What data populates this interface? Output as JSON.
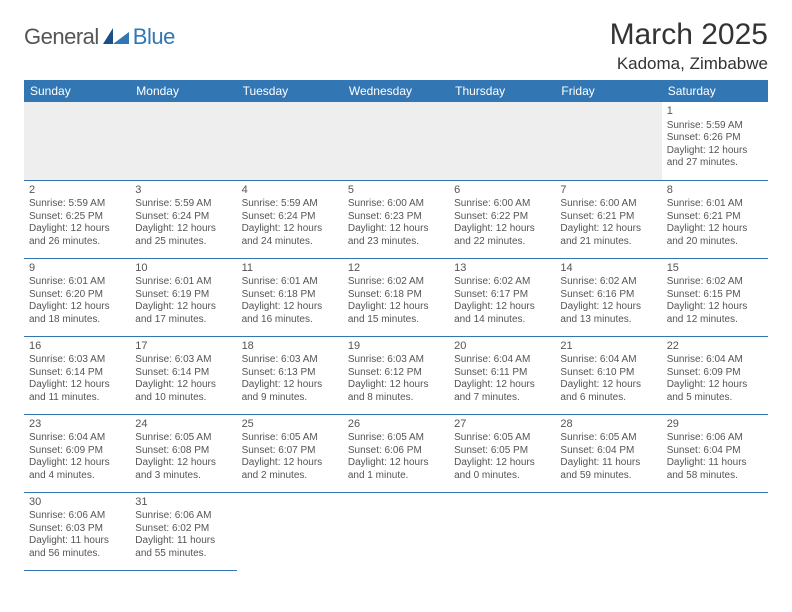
{
  "logo": {
    "general": "General",
    "blue": "Blue"
  },
  "title": "March 2025",
  "location": "Kadoma, Zimbabwe",
  "colors": {
    "primary": "#3277b3",
    "blankRow": "#eeeeee",
    "text": "#555555"
  },
  "dayHeaders": [
    "Sunday",
    "Monday",
    "Tuesday",
    "Wednesday",
    "Thursday",
    "Friday",
    "Saturday"
  ],
  "weeks": [
    [
      null,
      null,
      null,
      null,
      null,
      null,
      {
        "n": "1",
        "sr": "5:59 AM",
        "ss": "6:26 PM",
        "dl": "12 hours and 27 minutes."
      }
    ],
    [
      {
        "n": "2",
        "sr": "5:59 AM",
        "ss": "6:25 PM",
        "dl": "12 hours and 26 minutes."
      },
      {
        "n": "3",
        "sr": "5:59 AM",
        "ss": "6:24 PM",
        "dl": "12 hours and 25 minutes."
      },
      {
        "n": "4",
        "sr": "5:59 AM",
        "ss": "6:24 PM",
        "dl": "12 hours and 24 minutes."
      },
      {
        "n": "5",
        "sr": "6:00 AM",
        "ss": "6:23 PM",
        "dl": "12 hours and 23 minutes."
      },
      {
        "n": "6",
        "sr": "6:00 AM",
        "ss": "6:22 PM",
        "dl": "12 hours and 22 minutes."
      },
      {
        "n": "7",
        "sr": "6:00 AM",
        "ss": "6:21 PM",
        "dl": "12 hours and 21 minutes."
      },
      {
        "n": "8",
        "sr": "6:01 AM",
        "ss": "6:21 PM",
        "dl": "12 hours and 20 minutes."
      }
    ],
    [
      {
        "n": "9",
        "sr": "6:01 AM",
        "ss": "6:20 PM",
        "dl": "12 hours and 18 minutes."
      },
      {
        "n": "10",
        "sr": "6:01 AM",
        "ss": "6:19 PM",
        "dl": "12 hours and 17 minutes."
      },
      {
        "n": "11",
        "sr": "6:01 AM",
        "ss": "6:18 PM",
        "dl": "12 hours and 16 minutes."
      },
      {
        "n": "12",
        "sr": "6:02 AM",
        "ss": "6:18 PM",
        "dl": "12 hours and 15 minutes."
      },
      {
        "n": "13",
        "sr": "6:02 AM",
        "ss": "6:17 PM",
        "dl": "12 hours and 14 minutes."
      },
      {
        "n": "14",
        "sr": "6:02 AM",
        "ss": "6:16 PM",
        "dl": "12 hours and 13 minutes."
      },
      {
        "n": "15",
        "sr": "6:02 AM",
        "ss": "6:15 PM",
        "dl": "12 hours and 12 minutes."
      }
    ],
    [
      {
        "n": "16",
        "sr": "6:03 AM",
        "ss": "6:14 PM",
        "dl": "12 hours and 11 minutes."
      },
      {
        "n": "17",
        "sr": "6:03 AM",
        "ss": "6:14 PM",
        "dl": "12 hours and 10 minutes."
      },
      {
        "n": "18",
        "sr": "6:03 AM",
        "ss": "6:13 PM",
        "dl": "12 hours and 9 minutes."
      },
      {
        "n": "19",
        "sr": "6:03 AM",
        "ss": "6:12 PM",
        "dl": "12 hours and 8 minutes."
      },
      {
        "n": "20",
        "sr": "6:04 AM",
        "ss": "6:11 PM",
        "dl": "12 hours and 7 minutes."
      },
      {
        "n": "21",
        "sr": "6:04 AM",
        "ss": "6:10 PM",
        "dl": "12 hours and 6 minutes."
      },
      {
        "n": "22",
        "sr": "6:04 AM",
        "ss": "6:09 PM",
        "dl": "12 hours and 5 minutes."
      }
    ],
    [
      {
        "n": "23",
        "sr": "6:04 AM",
        "ss": "6:09 PM",
        "dl": "12 hours and 4 minutes."
      },
      {
        "n": "24",
        "sr": "6:05 AM",
        "ss": "6:08 PM",
        "dl": "12 hours and 3 minutes."
      },
      {
        "n": "25",
        "sr": "6:05 AM",
        "ss": "6:07 PM",
        "dl": "12 hours and 2 minutes."
      },
      {
        "n": "26",
        "sr": "6:05 AM",
        "ss": "6:06 PM",
        "dl": "12 hours and 1 minute."
      },
      {
        "n": "27",
        "sr": "6:05 AM",
        "ss": "6:05 PM",
        "dl": "12 hours and 0 minutes."
      },
      {
        "n": "28",
        "sr": "6:05 AM",
        "ss": "6:04 PM",
        "dl": "11 hours and 59 minutes."
      },
      {
        "n": "29",
        "sr": "6:06 AM",
        "ss": "6:04 PM",
        "dl": "11 hours and 58 minutes."
      }
    ],
    [
      {
        "n": "30",
        "sr": "6:06 AM",
        "ss": "6:03 PM",
        "dl": "11 hours and 56 minutes."
      },
      {
        "n": "31",
        "sr": "6:06 AM",
        "ss": "6:02 PM",
        "dl": "11 hours and 55 minutes."
      },
      null,
      null,
      null,
      null,
      null
    ]
  ],
  "labels": {
    "sunrise": "Sunrise:",
    "sunset": "Sunset:",
    "daylight": "Daylight:"
  }
}
